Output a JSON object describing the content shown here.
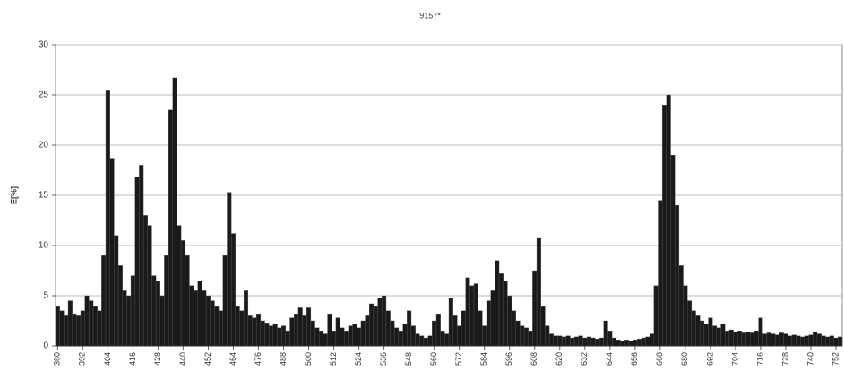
{
  "chart_data": {
    "type": "bar",
    "title": "9157*",
    "ylabel": "E[%]",
    "color": "#1a1a1a",
    "x": [
      380,
      382,
      384,
      386,
      388,
      390,
      392,
      394,
      396,
      398,
      400,
      402,
      404,
      406,
      408,
      410,
      412,
      414,
      416,
      418,
      420,
      422,
      424,
      426,
      428,
      430,
      432,
      434,
      436,
      438,
      440,
      442,
      444,
      446,
      448,
      450,
      452,
      454,
      456,
      458,
      460,
      462,
      464,
      466,
      468,
      470,
      472,
      474,
      476,
      478,
      480,
      482,
      484,
      486,
      488,
      490,
      492,
      494,
      496,
      498,
      500,
      502,
      504,
      506,
      508,
      510,
      512,
      514,
      516,
      518,
      520,
      522,
      524,
      526,
      528,
      530,
      532,
      534,
      536,
      538,
      540,
      542,
      544,
      546,
      548,
      550,
      552,
      554,
      556,
      558,
      560,
      562,
      564,
      566,
      568,
      570,
      572,
      574,
      576,
      578,
      580,
      582,
      584,
      586,
      588,
      590,
      592,
      594,
      596,
      598,
      600,
      602,
      604,
      606,
      608,
      610,
      612,
      614,
      616,
      618,
      620,
      622,
      624,
      626,
      628,
      630,
      632,
      634,
      636,
      638,
      640,
      642,
      644,
      646,
      648,
      650,
      652,
      654,
      656,
      658,
      660,
      662,
      664,
      666,
      668,
      670,
      672,
      674,
      676,
      678,
      680,
      682,
      684,
      686,
      688,
      690,
      692,
      694,
      696,
      698,
      700,
      702,
      704,
      706,
      708,
      710,
      712,
      714,
      716,
      718,
      720,
      722,
      724,
      726,
      728,
      730,
      732,
      734,
      736,
      738,
      740,
      742,
      744,
      746,
      748,
      750,
      752,
      754
    ],
    "values": [
      4,
      3.5,
      3,
      4.5,
      3.2,
      3,
      3.5,
      5,
      4.5,
      4,
      3.5,
      9,
      25.5,
      18.7,
      11,
      8,
      5.5,
      5,
      7,
      16.8,
      18,
      13,
      12,
      7,
      6.5,
      5,
      9,
      23.5,
      26.7,
      12,
      10.5,
      9,
      6,
      5.5,
      6.5,
      5.5,
      5,
      4.5,
      4,
      3.5,
      9,
      15.3,
      11.2,
      4,
      3.5,
      5.5,
      3,
      2.8,
      3.2,
      2.5,
      2.3,
      2,
      2.2,
      1.8,
      2,
      1.5,
      2.8,
      3.2,
      3.8,
      3,
      3.8,
      2.5,
      1.8,
      1.5,
      1.2,
      3.2,
      1.5,
      2.8,
      1.8,
      1.5,
      2,
      2.2,
      1.8,
      2.5,
      3,
      4.2,
      4,
      4.8,
      5,
      3.5,
      2.5,
      1.8,
      1.5,
      2.2,
      3.5,
      2,
      1.2,
      1,
      0.8,
      1,
      2.5,
      3.2,
      1.5,
      1.2,
      4.8,
      3,
      2,
      3.5,
      6.8,
      6,
      6.2,
      3.5,
      2,
      4.5,
      5.5,
      8.5,
      7.2,
      6.5,
      5,
      3.5,
      2.5,
      2,
      1.8,
      1.5,
      7.5,
      10.8,
      4,
      2,
      1.2,
      1,
      1,
      0.9,
      1,
      0.8,
      0.9,
      1,
      0.8,
      0.9,
      0.8,
      0.7,
      0.8,
      2.5,
      1.5,
      0.8,
      0.6,
      0.5,
      0.6,
      0.5,
      0.6,
      0.7,
      0.8,
      0.9,
      1.2,
      6,
      14.5,
      24,
      25,
      19,
      14,
      8,
      6,
      4.5,
      3.5,
      3,
      2.5,
      2.2,
      2.8,
      2,
      1.8,
      2.2,
      1.5,
      1.6,
      1.4,
      1.5,
      1.3,
      1.4,
      1.3,
      1.5,
      2.8,
      1.2,
      1.3,
      1.2,
      1.1,
      1.3,
      1.2,
      1,
      1.1,
      1,
      0.9,
      1,
      1.1,
      1.4,
      1.2,
      1,
      0.9,
      1,
      0.8,
      0.9
    ],
    "xlim": [
      379,
      755
    ],
    "xticks": [
      380,
      392,
      404,
      416,
      428,
      440,
      452,
      464,
      476,
      488,
      500,
      512,
      524,
      536,
      548,
      560,
      572,
      584,
      596,
      608,
      620,
      632,
      644,
      656,
      668,
      680,
      692,
      704,
      716,
      728,
      740,
      752
    ],
    "ylim": [
      0,
      30
    ],
    "yticks": [
      0,
      5,
      10,
      15,
      20,
      25,
      30
    ],
    "grid": true
  }
}
